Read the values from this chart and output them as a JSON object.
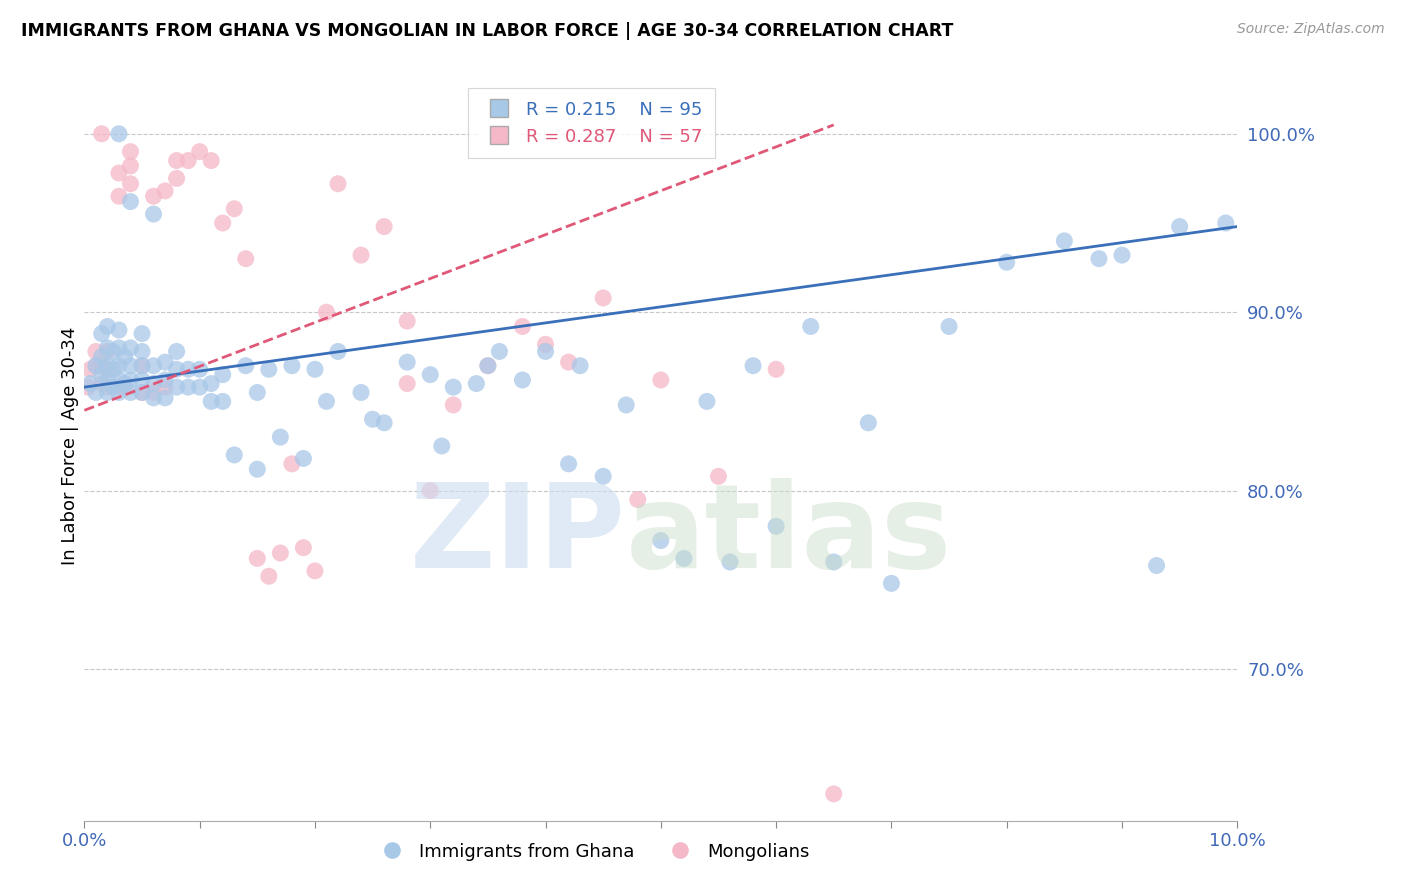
{
  "title": "IMMIGRANTS FROM GHANA VS MONGOLIAN IN LABOR FORCE | AGE 30-34 CORRELATION CHART",
  "source": "Source: ZipAtlas.com",
  "ylabel": "In Labor Force | Age 30-34",
  "xlim": [
    0.0,
    0.1
  ],
  "ylim": [
    0.615,
    1.035
  ],
  "ghana_R": 0.215,
  "ghana_N": 95,
  "mongolian_R": 0.287,
  "mongolian_N": 57,
  "ghana_color": "#a8c8e8",
  "mongolian_color": "#f5b8c8",
  "ghana_line_color": "#3a6fba",
  "mongolian_line_color": "#e05878",
  "ghana_scatter_x": [
    0.0005,
    0.001,
    0.001,
    0.0015,
    0.0015,
    0.0015,
    0.002,
    0.002,
    0.002,
    0.002,
    0.002,
    0.0025,
    0.0025,
    0.0025,
    0.003,
    0.003,
    0.003,
    0.003,
    0.003,
    0.003,
    0.0035,
    0.0035,
    0.004,
    0.004,
    0.004,
    0.004,
    0.004,
    0.005,
    0.005,
    0.005,
    0.005,
    0.005,
    0.006,
    0.006,
    0.006,
    0.006,
    0.007,
    0.007,
    0.007,
    0.008,
    0.008,
    0.008,
    0.009,
    0.009,
    0.01,
    0.01,
    0.011,
    0.011,
    0.012,
    0.012,
    0.013,
    0.014,
    0.015,
    0.015,
    0.016,
    0.017,
    0.018,
    0.019,
    0.02,
    0.021,
    0.022,
    0.024,
    0.025,
    0.026,
    0.028,
    0.03,
    0.031,
    0.032,
    0.034,
    0.035,
    0.036,
    0.038,
    0.04,
    0.042,
    0.043,
    0.045,
    0.047,
    0.05,
    0.052,
    0.054,
    0.056,
    0.058,
    0.06,
    0.063,
    0.065,
    0.068,
    0.07,
    0.075,
    0.08,
    0.085,
    0.088,
    0.09,
    0.093,
    0.095,
    0.099
  ],
  "ghana_scatter_y": [
    0.86,
    0.87,
    0.855,
    0.865,
    0.875,
    0.888,
    0.855,
    0.862,
    0.87,
    0.88,
    0.892,
    0.858,
    0.868,
    0.878,
    0.855,
    0.862,
    0.87,
    0.88,
    0.89,
    1.0,
    0.86,
    0.875,
    0.855,
    0.862,
    0.87,
    0.88,
    0.962,
    0.855,
    0.862,
    0.87,
    0.878,
    0.888,
    0.852,
    0.86,
    0.87,
    0.955,
    0.852,
    0.862,
    0.872,
    0.858,
    0.868,
    0.878,
    0.858,
    0.868,
    0.858,
    0.868,
    0.85,
    0.86,
    0.85,
    0.865,
    0.82,
    0.87,
    0.855,
    0.812,
    0.868,
    0.83,
    0.87,
    0.818,
    0.868,
    0.85,
    0.878,
    0.855,
    0.84,
    0.838,
    0.872,
    0.865,
    0.825,
    0.858,
    0.86,
    0.87,
    0.878,
    0.862,
    0.878,
    0.815,
    0.87,
    0.808,
    0.848,
    0.772,
    0.762,
    0.85,
    0.76,
    0.87,
    0.78,
    0.892,
    0.76,
    0.838,
    0.748,
    0.892,
    0.928,
    0.94,
    0.93,
    0.932,
    0.758,
    0.948,
    0.95
  ],
  "mongolian_scatter_x": [
    0.0003,
    0.0005,
    0.001,
    0.001,
    0.0015,
    0.0015,
    0.0015,
    0.002,
    0.002,
    0.002,
    0.0025,
    0.0025,
    0.003,
    0.003,
    0.003,
    0.0035,
    0.004,
    0.004,
    0.004,
    0.005,
    0.005,
    0.006,
    0.006,
    0.007,
    0.007,
    0.008,
    0.008,
    0.009,
    0.01,
    0.011,
    0.012,
    0.013,
    0.014,
    0.015,
    0.016,
    0.017,
    0.018,
    0.019,
    0.02,
    0.021,
    0.022,
    0.024,
    0.026,
    0.028,
    0.03,
    0.032,
    0.035,
    0.038,
    0.04,
    0.042,
    0.045,
    0.048,
    0.05,
    0.055,
    0.06,
    0.065,
    0.028
  ],
  "mongolian_scatter_y": [
    0.858,
    0.868,
    0.87,
    0.878,
    0.86,
    0.87,
    1.0,
    0.858,
    0.868,
    0.878,
    0.858,
    0.868,
    0.858,
    0.965,
    0.978,
    0.858,
    0.972,
    0.982,
    0.99,
    0.855,
    0.87,
    0.855,
    0.965,
    0.858,
    0.968,
    0.975,
    0.985,
    0.985,
    0.99,
    0.985,
    0.95,
    0.958,
    0.93,
    0.762,
    0.752,
    0.765,
    0.815,
    0.768,
    0.755,
    0.9,
    0.972,
    0.932,
    0.948,
    0.895,
    0.8,
    0.848,
    0.87,
    0.892,
    0.882,
    0.872,
    0.908,
    0.795,
    0.862,
    0.808,
    0.868,
    0.63,
    0.86
  ]
}
